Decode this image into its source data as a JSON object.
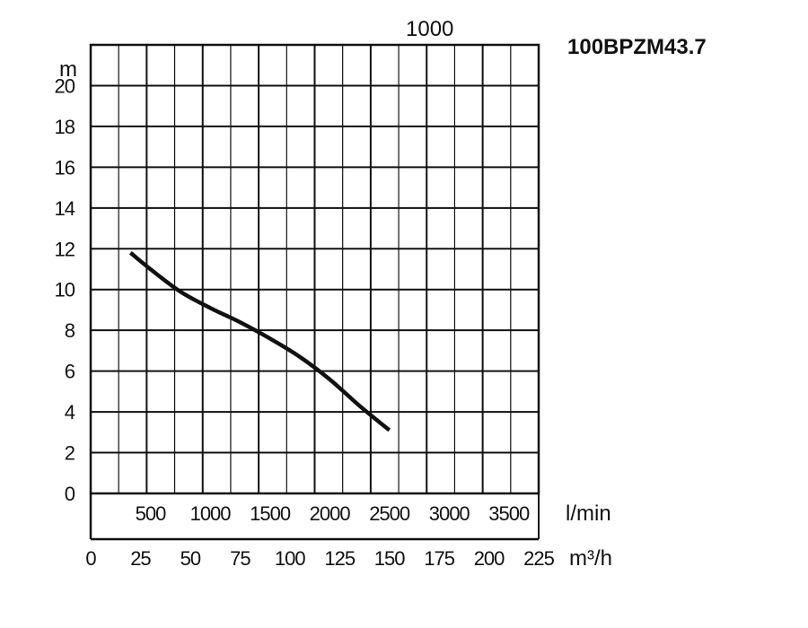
{
  "model_label": "100BPZM43.7",
  "top_label": "1000",
  "y_unit": "m",
  "lmin_unit": "l/min",
  "m3h_unit": "m³/h",
  "y_ticks": [
    "0",
    "2",
    "4",
    "6",
    "8",
    "10",
    "12",
    "14",
    "16",
    "18",
    "20"
  ],
  "lmin_ticks": [
    {
      "label": "500",
      "value": 500
    },
    {
      "label": "1000",
      "value": 1000
    },
    {
      "label": "1500",
      "value": 1500
    },
    {
      "label": "2000",
      "value": 2000
    },
    {
      "label": "2500",
      "value": 2500
    },
    {
      "label": "3000",
      "value": 3000
    },
    {
      "label": "3500",
      "value": 3500
    }
  ],
  "m3h_ticks": [
    "0",
    "25",
    "50",
    "75",
    "100",
    "125",
    "150",
    "175",
    "200",
    "225"
  ],
  "chart_data": {
    "type": "line",
    "title": "100BPZM43.7",
    "xlabel": "m³/h",
    "ylabel": "m",
    "secondary_xlabel": "l/min",
    "xlim": [
      0,
      225
    ],
    "ylim": [
      0,
      22
    ],
    "grid": true,
    "series": [
      {
        "x": [
          20,
          30,
          45,
          60,
          75,
          90,
          105,
          120,
          135,
          150
        ],
        "y": [
          11.8,
          11.0,
          9.9,
          9.1,
          8.4,
          7.6,
          6.7,
          5.6,
          4.3,
          3.1
        ]
      }
    ]
  }
}
